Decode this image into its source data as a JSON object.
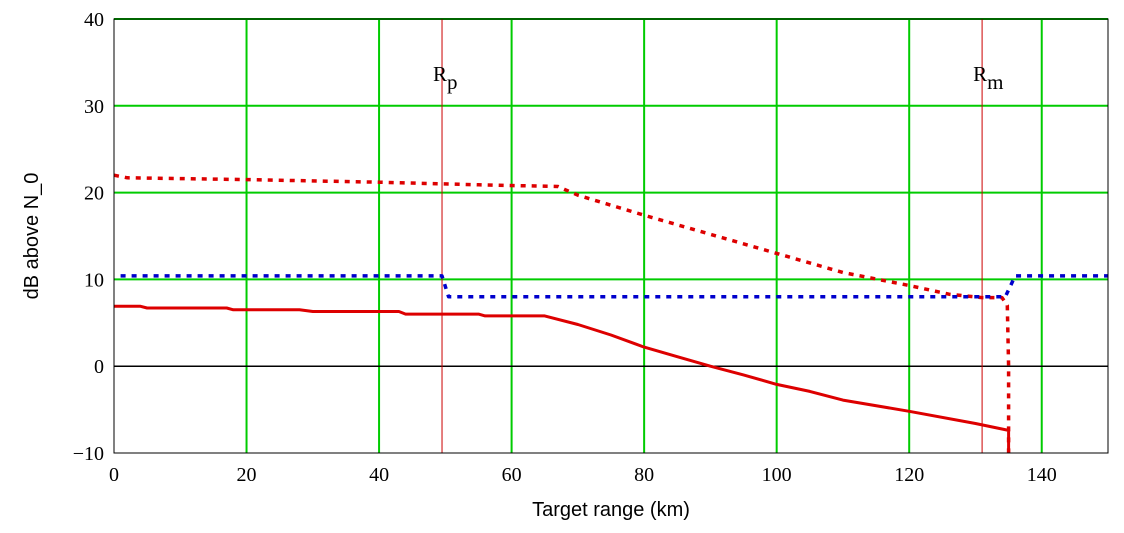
{
  "chart_data": {
    "type": "line",
    "xlabel": "Target range (km)",
    "ylabel": "dB above N_0",
    "xlim": [
      0,
      150
    ],
    "ylim": [
      -10,
      40
    ],
    "x_ticks": [
      0,
      20,
      40,
      60,
      80,
      100,
      120,
      140
    ],
    "y_ticks": [
      -10,
      0,
      10,
      20,
      30,
      40
    ],
    "grid": true,
    "grid_color": "#00cc00",
    "zero_line_color": "#000000",
    "markers": [
      {
        "label": "R",
        "subscript": "p",
        "x": 49.5,
        "color": "#cc0000"
      },
      {
        "label": "R",
        "subscript": "m",
        "x": 131,
        "color": "#cc0000"
      }
    ],
    "series": [
      {
        "style": "solid",
        "color": "#dd0000",
        "points": [
          [
            0,
            6.9
          ],
          [
            4,
            6.9
          ],
          [
            5,
            6.7
          ],
          [
            17,
            6.7
          ],
          [
            18,
            6.5
          ],
          [
            28,
            6.5
          ],
          [
            30,
            6.3
          ],
          [
            43,
            6.3
          ],
          [
            44,
            6.0
          ],
          [
            55,
            6.0
          ],
          [
            56,
            5.8
          ],
          [
            65,
            5.8
          ],
          [
            70,
            4.8
          ],
          [
            75,
            3.6
          ],
          [
            80,
            2.2
          ],
          [
            85,
            1.1
          ],
          [
            90,
            0.0
          ],
          [
            95,
            -1.0
          ],
          [
            100,
            -2.1
          ],
          [
            105,
            -2.9
          ],
          [
            110,
            -3.9
          ],
          [
            120,
            -5.2
          ],
          [
            130,
            -6.6
          ],
          [
            135,
            -7.4
          ],
          [
            135,
            -10
          ]
        ]
      },
      {
        "style": "dotted",
        "color": "#dd0000",
        "points": [
          [
            0,
            22
          ],
          [
            2,
            21.7
          ],
          [
            20,
            21.5
          ],
          [
            40,
            21.2
          ],
          [
            55,
            20.9
          ],
          [
            67,
            20.7
          ],
          [
            70,
            19.7
          ],
          [
            80,
            17.4
          ],
          [
            90,
            15.2
          ],
          [
            100,
            13.0
          ],
          [
            110,
            10.8
          ],
          [
            120,
            9.3
          ],
          [
            126,
            8.3
          ],
          [
            131,
            7.9
          ],
          [
            134,
            7.9
          ],
          [
            134.8,
            7.0
          ],
          [
            135,
            0
          ],
          [
            135,
            -10
          ]
        ]
      },
      {
        "style": "dotted",
        "color": "#0000cc",
        "points": [
          [
            1,
            10.4
          ],
          [
            49.5,
            10.4
          ],
          [
            50.5,
            8.0
          ],
          [
            60,
            8.0
          ],
          [
            80,
            8.0
          ],
          [
            100,
            8.0
          ],
          [
            120,
            8.0
          ],
          [
            134.5,
            8.0
          ],
          [
            136,
            10.4
          ],
          [
            150,
            10.4
          ]
        ]
      }
    ]
  }
}
